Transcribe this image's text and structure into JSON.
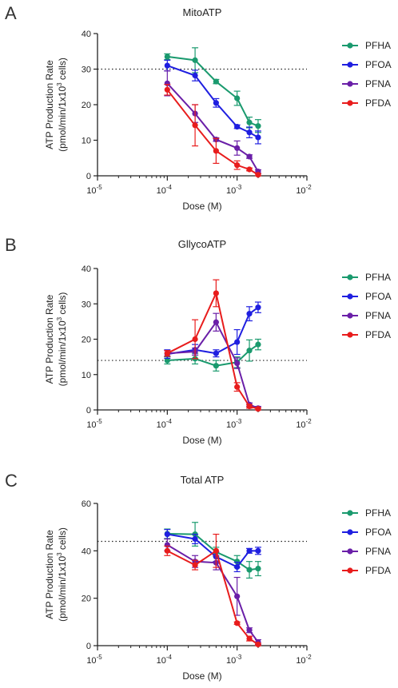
{
  "colors": {
    "PFHA": "#1a9a6e",
    "PFOA": "#1f1fe0",
    "PFNA": "#6a1fa8",
    "PFDA": "#e81c1c"
  },
  "chart_data": [
    {
      "panel": "A",
      "type": "line",
      "title": "MitoATP",
      "xlabel": "Dose (M)",
      "ylabel_line1": "ATP Production Rate",
      "ylabel_line2": "(pmol/min/1x10",
      "ylabel_sup": "3",
      "ylabel_tail": " cells)",
      "x_scale": "log",
      "xlim": [
        1e-05,
        0.01
      ],
      "ylim": [
        0,
        40
      ],
      "yticks": [
        0,
        10,
        20,
        30,
        40
      ],
      "xticks": [
        {
          "base": "10",
          "exp": "-5"
        },
        {
          "base": "10",
          "exp": "-4"
        },
        {
          "base": "10",
          "exp": "-3"
        },
        {
          "base": "10",
          "exp": "-2"
        }
      ],
      "reference_line": 30,
      "x": [
        0.0001,
        0.00025,
        0.0005,
        0.001,
        0.0015,
        0.002
      ],
      "series": [
        {
          "name": "PFHA",
          "values": [
            33.5,
            32.5,
            26.5,
            21.8,
            15,
            14
          ],
          "errors": [
            0.8,
            3.5,
            0.6,
            2,
            1.5,
            1.8
          ]
        },
        {
          "name": "PFOA",
          "values": [
            31,
            28.2,
            20.5,
            13.8,
            12.2,
            10.8
          ],
          "errors": [
            1.5,
            1.5,
            1.2,
            0.5,
            1.5,
            1.8
          ]
        },
        {
          "name": "PFNA",
          "values": [
            26,
            17.5,
            10.2,
            7.8,
            5.4,
            1.2
          ],
          "errors": [
            3.5,
            2.5,
            0.5,
            2,
            0.5,
            0.5
          ]
        },
        {
          "name": "PFDA",
          "values": [
            24.2,
            14.2,
            7,
            3,
            1.8,
            0.3
          ],
          "errors": [
            1.5,
            5.8,
            3.5,
            1.2,
            0.4,
            0.3
          ]
        }
      ]
    },
    {
      "panel": "B",
      "type": "line",
      "title": "GllycoATP",
      "xlabel": "Dose (M)",
      "ylabel_line1": "ATP Production Rate",
      "ylabel_line2": "(pmol/min/1x10",
      "ylabel_sup": "3",
      "ylabel_tail": " cells)",
      "x_scale": "log",
      "xlim": [
        1e-05,
        0.01
      ],
      "ylim": [
        0,
        40
      ],
      "yticks": [
        0,
        10,
        20,
        30,
        40
      ],
      "xticks": [
        {
          "base": "10",
          "exp": "-5"
        },
        {
          "base": "10",
          "exp": "-4"
        },
        {
          "base": "10",
          "exp": "-3"
        },
        {
          "base": "10",
          "exp": "-2"
        }
      ],
      "reference_line": 14,
      "x": [
        0.0001,
        0.00025,
        0.0005,
        0.001,
        0.0015,
        0.002
      ],
      "series": [
        {
          "name": "PFHA",
          "values": [
            14,
            14.5,
            12.5,
            13.5,
            16.8,
            18.5
          ],
          "errors": [
            1,
            1.5,
            1.5,
            1.5,
            3,
            1.5
          ]
        },
        {
          "name": "PFOA",
          "values": [
            15.8,
            17,
            16,
            19.2,
            27.2,
            29
          ],
          "errors": [
            1.2,
            1.5,
            1,
            3.5,
            2,
            1.5
          ]
        },
        {
          "name": "PFNA",
          "values": [
            16,
            16.5,
            24.8,
            13.2,
            1.5,
            0.5
          ],
          "errors": [
            0.8,
            1,
            2.5,
            1.5,
            0.5,
            0.5
          ]
        },
        {
          "name": "PFDA",
          "values": [
            16,
            20,
            33,
            6.5,
            1,
            0.3
          ],
          "errors": [
            0.8,
            5.5,
            3.8,
            1.2,
            0.5,
            0.3
          ]
        }
      ]
    },
    {
      "panel": "C",
      "type": "line",
      "title": "Total ATP",
      "xlabel": "Dose (M)",
      "ylabel_line1": "ATP Production Rate",
      "ylabel_line2": "(pmol/min/1x10",
      "ylabel_sup": "3",
      "ylabel_tail": " cells)",
      "x_scale": "log",
      "xlim": [
        1e-05,
        0.01
      ],
      "ylim": [
        0,
        60
      ],
      "yticks": [
        0,
        20,
        40,
        60
      ],
      "xticks": [
        {
          "base": "10",
          "exp": "-5"
        },
        {
          "base": "10",
          "exp": "-4"
        },
        {
          "base": "10",
          "exp": "-3"
        },
        {
          "base": "10",
          "exp": "-2"
        }
      ],
      "reference_line": 44,
      "x": [
        0.0001,
        0.00025,
        0.0005,
        0.001,
        0.0015,
        0.002
      ],
      "series": [
        {
          "name": "PFHA",
          "values": [
            47.2,
            47,
            39.5,
            35.5,
            32,
            32.5
          ],
          "errors": [
            2,
            5,
            2,
            2.5,
            3.5,
            3
          ]
        },
        {
          "name": "PFOA",
          "values": [
            47,
            45,
            37.5,
            33.2,
            40,
            40
          ],
          "errors": [
            2,
            2,
            2,
            2,
            1,
            1.5
          ]
        },
        {
          "name": "PFNA",
          "values": [
            42.5,
            35.5,
            35,
            20.8,
            6.5,
            1.5
          ],
          "errors": [
            2.5,
            2.5,
            3,
            8,
            1,
            1
          ]
        },
        {
          "name": "PFDA",
          "values": [
            40,
            34,
            40,
            9.5,
            3,
            0.5
          ],
          "errors": [
            2,
            2,
            7,
            0.5,
            1,
            0.5
          ]
        }
      ]
    }
  ]
}
